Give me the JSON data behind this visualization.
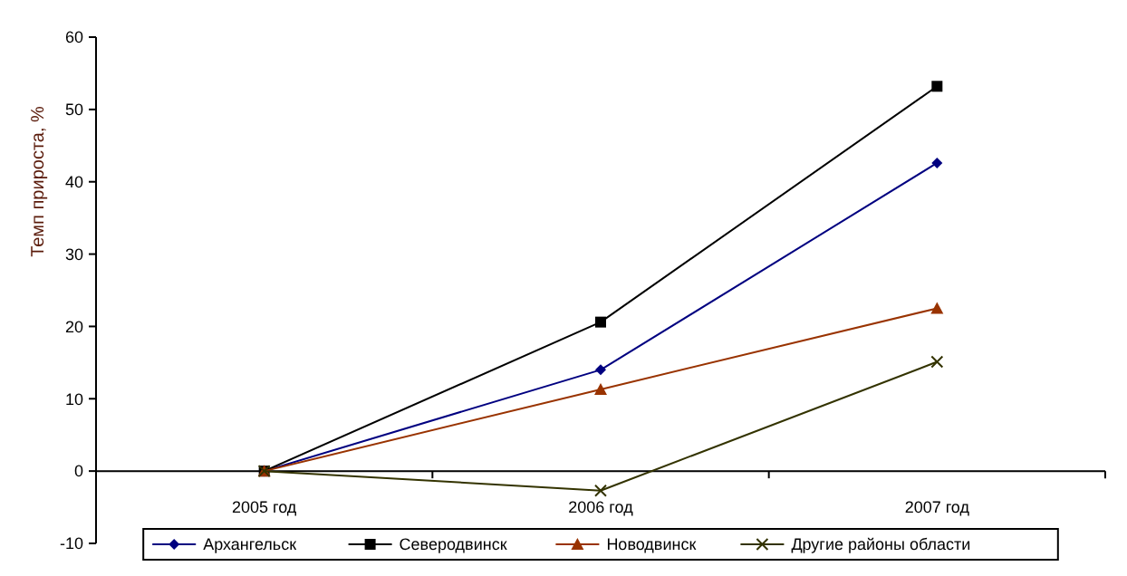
{
  "chart_data": {
    "type": "line",
    "ylabel": "Темп прироста, %",
    "categories": [
      "2005 год",
      "2006 год",
      "2007 год"
    ],
    "series": [
      {
        "name": "Архангельск",
        "color": "#000080",
        "marker": "diamond",
        "values": [
          0,
          14,
          42.6
        ]
      },
      {
        "name": "Северодвинск",
        "color": "#000000",
        "marker": "square",
        "values": [
          0,
          20.6,
          53.2
        ]
      },
      {
        "name": "Новодвинск",
        "color": "#993300",
        "marker": "triangle",
        "values": [
          0,
          11.3,
          22.5
        ]
      },
      {
        "name": "Другие районы области",
        "color": "#333300",
        "marker": "cross",
        "values": [
          0,
          -2.7,
          15.1
        ]
      }
    ],
    "ylim": [
      -10,
      60
    ],
    "yticks": [
      -10,
      0,
      10,
      20,
      30,
      40,
      50,
      60
    ],
    "grid": false,
    "legend": "bottom"
  }
}
